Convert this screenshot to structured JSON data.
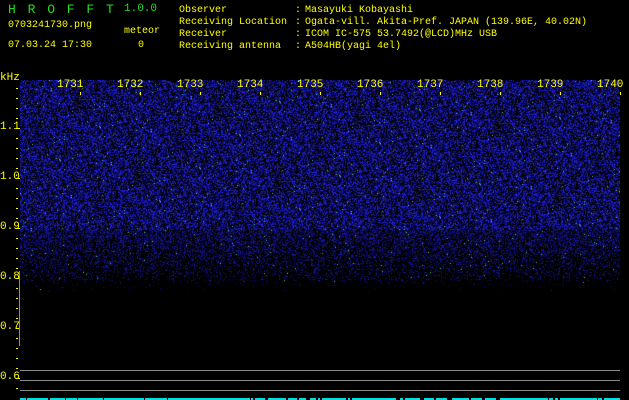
{
  "app": {
    "name": "H R O F F T",
    "version": "1.0.0"
  },
  "file": {
    "name": "0703241730.png",
    "datetime": "07.03.24 17:30"
  },
  "meteor": {
    "label": "meteor",
    "count": "0"
  },
  "info": [
    {
      "label": "Observer",
      "sep": ":",
      "value": "Masayuki Kobayashi"
    },
    {
      "label": "Receiving Location",
      "sep": ":",
      "value": "Ogata-vill. Akita-Pref. JAPAN (139.96E, 40.02N)"
    },
    {
      "label": "Receiver",
      "sep": ":",
      "value": "ICOM IC-575 53.7492(@LCD)MHz USB"
    },
    {
      "label": "Receiving antenna",
      "sep": ":",
      "value": "A504HB(yagi 4el)"
    }
  ],
  "spectrogram": {
    "y_unit": "kHz",
    "y_ticks": [
      "1.1",
      "1.0",
      "0.9",
      "0.8",
      "0.7",
      "0.6"
    ],
    "x_ticks": [
      "1731",
      "1732",
      "1733",
      "1734",
      "1735",
      "1736",
      "1737",
      "1738",
      "1739",
      "1740"
    ],
    "colors": {
      "noise": "#2020ff",
      "axis": "#ffff00",
      "marker": "#00dddd",
      "grid": "#8a8a8a"
    }
  }
}
